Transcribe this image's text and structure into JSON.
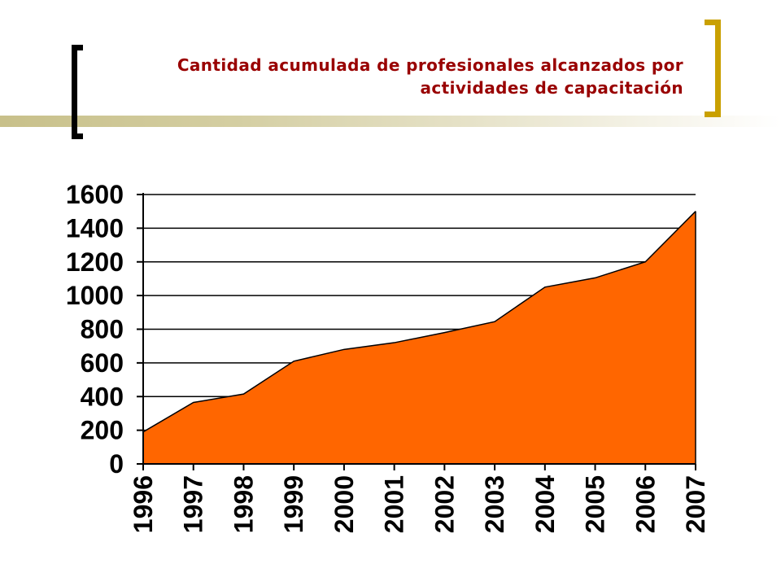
{
  "title": {
    "line1": "Cantidad acumulada de profesionales alcanzados por",
    "line2": "actividades de capacitación"
  },
  "colors": {
    "title": "#990000",
    "area_fill": "#ff6600",
    "area_stroke": "#000000",
    "bracket_left": "#000000",
    "bracket_right": "#c9a000",
    "band": "#c8c08a"
  },
  "chart_data": {
    "type": "area",
    "title": "Cantidad acumulada de profesionales alcanzados por actividades de capacitación",
    "xlabel": "",
    "ylabel": "",
    "categories": [
      "1996",
      "1997",
      "1998",
      "1999",
      "2000",
      "2001",
      "2002",
      "2003",
      "2004",
      "2005",
      "2006",
      "2007"
    ],
    "values": [
      190,
      365,
      415,
      610,
      680,
      720,
      780,
      845,
      1050,
      1105,
      1200,
      1500
    ],
    "ylim": [
      0,
      1600
    ],
    "yticks": [
      "0",
      "200",
      "400",
      "600",
      "800",
      "1000",
      "1200",
      "1400",
      "1600"
    ],
    "grid": true,
    "legend": "none"
  }
}
